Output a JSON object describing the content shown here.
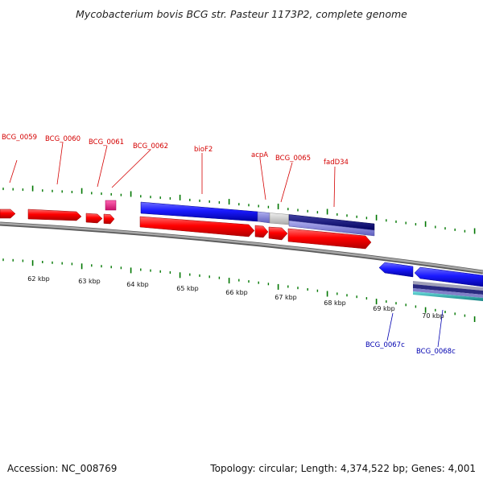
{
  "title": "Mycobacterium bovis BCG str. Pasteur 1173P2, complete genome",
  "footer": {
    "accession": "Accession: NC_008769",
    "summary": "Topology: circular; Length: 4,374,522 bp; Genes: 4,001"
  },
  "ruler": {
    "labels": [
      "62 kbp",
      "63 kbp",
      "64 kbp",
      "65 kbp",
      "66 kbp",
      "67 kbp",
      "68 kbp",
      "69 kbp",
      "70 kbp"
    ]
  },
  "gene_labels": {
    "forward": [
      "BCG_0059",
      "BCG_0060",
      "BCG_0061",
      "BCG_0062",
      "bioF2",
      "acpA",
      "BCG_0065",
      "fadD34"
    ],
    "reverse": [
      "BCG_0067c",
      "BCG_0068c"
    ]
  },
  "colors": {
    "forward_gene": "#ff0000",
    "reverse_gene": "#1a1aff",
    "forward_label": "#d40000",
    "reverse_label": "#0000b0",
    "tick": "#007700",
    "backbone": "#8c8c8c",
    "rna": "#e8177d",
    "region_dark": "#000080",
    "region_light": "#8080d0",
    "region_grey": "#cccccc",
    "region_cyan": "#20b2b2"
  }
}
